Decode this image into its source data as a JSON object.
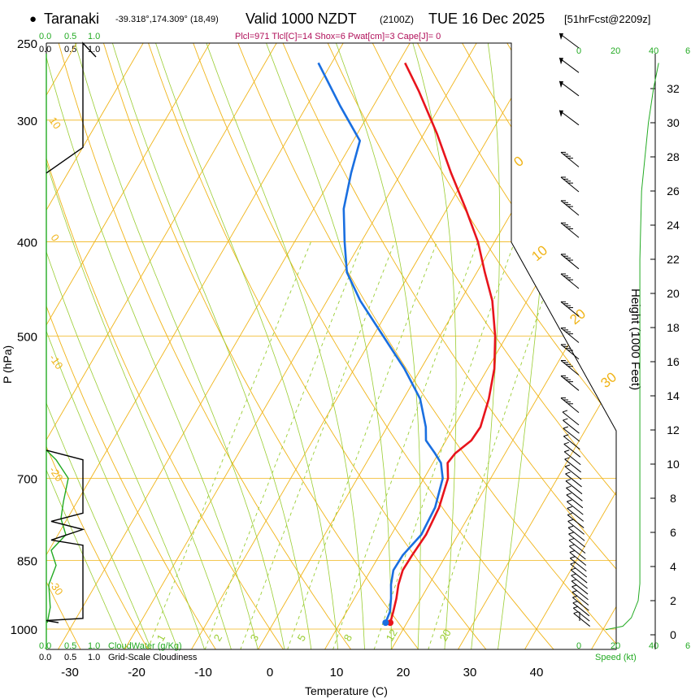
{
  "header": {
    "bullet": "●",
    "station": "Taranaki",
    "coords": "-39.318°,174.309° (18,49)",
    "valid": "Valid 1000 NZDT",
    "utc": "(2100Z)",
    "date": "TUE 16 Dec 2025",
    "forecast": "[51hrFcst@2209z]",
    "params": "Plcl=971 Tlcl[C]=14 Shox=6 Pwat[cm]=3 Cape[J]= 0"
  },
  "axes": {
    "xlabel": "Temperature (C)",
    "ylabel": "P (hPa)",
    "y2label": "Height (1000 Feet)",
    "speed_label": "Speed (kt)",
    "cloudwater_label": "CloudWater (g/Kg)",
    "cloudiness_label": "Grid-Scale Cloudiness",
    "cw_ticks": [
      "0.0",
      "0.5",
      "1.0"
    ],
    "cl_ticks": [
      "0.0",
      "0.5",
      "1.0"
    ],
    "speed_ticks": [
      "0",
      "20",
      "40",
      "6"
    ]
  },
  "colors": {
    "temperature": "#e8141c",
    "dewpoint": "#1a6fe0",
    "isotherm": "#f0b418",
    "dry_adiabat": "#f0b418",
    "moist_adiabat": "#9acd32",
    "mixing_ratio": "#9acd32",
    "cloudwater": "#22aa22",
    "axes": "#000000",
    "params_text": "#b0105a"
  },
  "chart_data": {
    "type": "skew-t",
    "title": "Taranaki Valid 1000 NZDT TUE 16 Dec 2025",
    "pressure_ticks": [
      250,
      300,
      400,
      500,
      700,
      850,
      1000
    ],
    "temp_ticks": [
      -30,
      -20,
      -10,
      0,
      10,
      20,
      30,
      40
    ],
    "height_ticks": [
      0,
      2,
      4,
      6,
      8,
      10,
      12,
      14,
      16,
      18,
      20,
      22,
      24,
      26,
      28,
      30,
      32
    ],
    "isotherm_labels": [
      {
        "t": 0,
        "text": "0"
      },
      {
        "t": 10,
        "text": "10"
      },
      {
        "t": 20,
        "text": "20"
      },
      {
        "t": 30,
        "text": "30"
      }
    ],
    "left_labels": [
      "10",
      "0",
      "-10",
      "-20",
      "-30"
    ],
    "mixing_ratio_labels": [
      "1",
      "2",
      "3",
      "5",
      "8",
      "12",
      "20"
    ],
    "temperature": [
      {
        "p": 985,
        "t": 17.5
      },
      {
        "p": 960,
        "t": 17.0
      },
      {
        "p": 930,
        "t": 16.3
      },
      {
        "p": 900,
        "t": 15.4
      },
      {
        "p": 870,
        "t": 14.8
      },
      {
        "p": 840,
        "t": 14.9
      },
      {
        "p": 800,
        "t": 15.2
      },
      {
        "p": 750,
        "t": 14.8
      },
      {
        "p": 700,
        "t": 13.6
      },
      {
        "p": 675,
        "t": 12.2
      },
      {
        "p": 660,
        "t": 12.5
      },
      {
        "p": 640,
        "t": 13.8
      },
      {
        "p": 620,
        "t": 14.0
      },
      {
        "p": 580,
        "t": 12.8
      },
      {
        "p": 540,
        "t": 11.0
      },
      {
        "p": 500,
        "t": 8.3
      },
      {
        "p": 460,
        "t": 4.8
      },
      {
        "p": 430,
        "t": 1.2
      },
      {
        "p": 400,
        "t": -2.5
      },
      {
        "p": 370,
        "t": -7.2
      },
      {
        "p": 340,
        "t": -12.5
      },
      {
        "p": 310,
        "t": -18.0
      },
      {
        "p": 280,
        "t": -24.5
      },
      {
        "p": 262,
        "t": -29.0
      }
    ],
    "dewpoint": [
      {
        "p": 985,
        "t": 16.8
      },
      {
        "p": 960,
        "t": 16.5
      },
      {
        "p": 930,
        "t": 15.5
      },
      {
        "p": 900,
        "t": 14.3
      },
      {
        "p": 870,
        "t": 13.4
      },
      {
        "p": 840,
        "t": 13.5
      },
      {
        "p": 800,
        "t": 14.5
      },
      {
        "p": 750,
        "t": 14.2
      },
      {
        "p": 700,
        "t": 12.8
      },
      {
        "p": 675,
        "t": 11.2
      },
      {
        "p": 660,
        "t": 9.5
      },
      {
        "p": 640,
        "t": 7.0
      },
      {
        "p": 620,
        "t": 5.8
      },
      {
        "p": 580,
        "t": 2.5
      },
      {
        "p": 540,
        "t": -2.5
      },
      {
        "p": 500,
        "t": -8.5
      },
      {
        "p": 460,
        "t": -15.0
      },
      {
        "p": 430,
        "t": -19.5
      },
      {
        "p": 400,
        "t": -22.5
      },
      {
        "p": 370,
        "t": -25.5
      },
      {
        "p": 340,
        "t": -27.5
      },
      {
        "p": 315,
        "t": -29.0
      },
      {
        "p": 290,
        "t": -35.0
      },
      {
        "p": 262,
        "t": -42.0
      }
    ],
    "wind_speed_profile": [
      {
        "h": 0.5,
        "kt": 1
      },
      {
        "h": 1.0,
        "kt": 6
      },
      {
        "h": 2.0,
        "kt": 10
      },
      {
        "h": 3.0,
        "kt": 11
      },
      {
        "h": 4.0,
        "kt": 11
      },
      {
        "h": 6.0,
        "kt": 11
      },
      {
        "h": 10.0,
        "kt": 11
      },
      {
        "h": 14.0,
        "kt": 11
      },
      {
        "h": 18.0,
        "kt": 11
      },
      {
        "h": 22.0,
        "kt": 11
      },
      {
        "h": 26.0,
        "kt": 12
      },
      {
        "h": 28.0,
        "kt": 14
      },
      {
        "h": 30.0,
        "kt": 16
      },
      {
        "h": 32.0,
        "kt": 19
      },
      {
        "h": 33.5,
        "kt": 22
      }
    ],
    "cloudwater": [
      {
        "p": 985,
        "v": 0.02
      },
      {
        "p": 950,
        "v": 0.08
      },
      {
        "p": 900,
        "v": 0.05
      },
      {
        "p": 860,
        "v": 0.2
      },
      {
        "p": 830,
        "v": 0.1
      },
      {
        "p": 800,
        "v": 0.4
      },
      {
        "p": 770,
        "v": 0.3
      },
      {
        "p": 740,
        "v": 0.35
      },
      {
        "p": 700,
        "v": 0.45
      },
      {
        "p": 670,
        "v": 0.2
      },
      {
        "p": 655,
        "v": 0.0
      }
    ],
    "cloudiness": [
      {
        "p": 980,
        "v": 0.0
      },
      {
        "p": 975,
        "v": 0.75
      },
      {
        "p": 820,
        "v": 0.75
      },
      {
        "p": 810,
        "v": 0.1
      },
      {
        "p": 790,
        "v": 0.75
      },
      {
        "p": 775,
        "v": 0.1
      },
      {
        "p": 760,
        "v": 0.75
      },
      {
        "p": 670,
        "v": 0.75
      },
      {
        "p": 655,
        "v": 0.0
      }
    ],
    "upper_cloudiness": [
      {
        "p": 340,
        "v": 0.0
      },
      {
        "p": 320,
        "v": 0.75
      },
      {
        "p": 250,
        "v": 0.75
      }
    ]
  }
}
